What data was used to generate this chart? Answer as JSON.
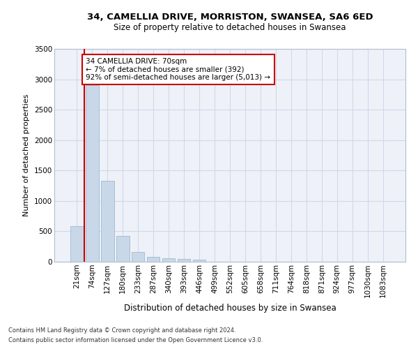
{
  "title1": "34, CAMELLIA DRIVE, MORRISTON, SWANSEA, SA6 6ED",
  "title2": "Size of property relative to detached houses in Swansea",
  "xlabel": "Distribution of detached houses by size in Swansea",
  "ylabel": "Number of detached properties",
  "footnote1": "Contains HM Land Registry data © Crown copyright and database right 2024.",
  "footnote2": "Contains public sector information licensed under the Open Government Licence v3.0.",
  "annotation_line1": "34 CAMELLIA DRIVE: 70sqm",
  "annotation_line2": "← 7% of detached houses are smaller (392)",
  "annotation_line3": "92% of semi-detached houses are larger (5,013) →",
  "bar_labels": [
    "21sqm",
    "74sqm",
    "127sqm",
    "180sqm",
    "233sqm",
    "287sqm",
    "340sqm",
    "393sqm",
    "446sqm",
    "499sqm",
    "552sqm",
    "605sqm",
    "658sqm",
    "711sqm",
    "764sqm",
    "818sqm",
    "871sqm",
    "924sqm",
    "977sqm",
    "1030sqm",
    "1083sqm"
  ],
  "bar_values": [
    580,
    2900,
    1330,
    420,
    160,
    80,
    55,
    45,
    40,
    0,
    0,
    0,
    0,
    0,
    0,
    0,
    0,
    0,
    0,
    0,
    0
  ],
  "bar_color": "#c8d8e8",
  "bar_edge_color": "#a0b8d0",
  "grid_color": "#d0d8e8",
  "bg_color": "#eef2f8",
  "vline_color": "#cc0000",
  "annotation_box_color": "#cc0000",
  "ylim": [
    0,
    3500
  ],
  "yticks": [
    0,
    500,
    1000,
    1500,
    2000,
    2500,
    3000,
    3500
  ],
  "title1_fontsize": 9.5,
  "title2_fontsize": 8.5,
  "xlabel_fontsize": 8.5,
  "ylabel_fontsize": 8,
  "tick_fontsize": 7.5,
  "annotation_fontsize": 7.5,
  "footnote_fontsize": 6
}
